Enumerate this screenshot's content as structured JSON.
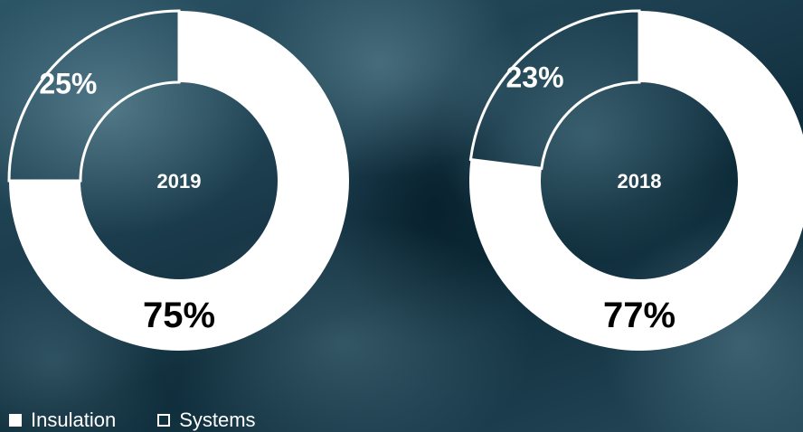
{
  "chart_data": [
    {
      "type": "pie",
      "center_label": "2019",
      "slices": [
        {
          "name": "Insulation",
          "value": 75,
          "label": "75%"
        },
        {
          "name": "Systems",
          "value": 25,
          "label": "25%"
        }
      ]
    },
    {
      "type": "pie",
      "center_label": "2018",
      "slices": [
        {
          "name": "Insulation",
          "value": 77,
          "label": "77%"
        },
        {
          "name": "Systems",
          "value": 23,
          "label": "23%"
        }
      ]
    }
  ],
  "legend": {
    "placement": "bottom-left",
    "items": [
      {
        "label": "Insulation",
        "style": "filled"
      },
      {
        "label": "Systems",
        "style": "outline"
      }
    ]
  },
  "colors": {
    "slice": "#ffffff",
    "text_on_slice": "#000000",
    "text_on_image": "#ffffff"
  }
}
